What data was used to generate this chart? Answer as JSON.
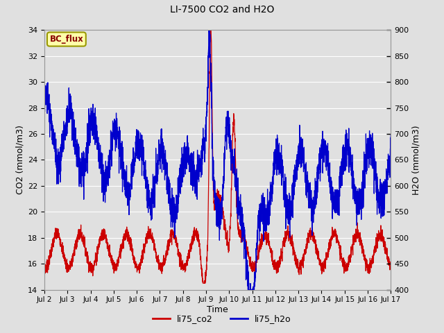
{
  "title": "LI-7500 CO2 and H2O",
  "xlabel": "Time",
  "ylabel_left": "CO2 (mmol/m3)",
  "ylabel_right": "H2O (mmol/m3)",
  "xlim": [
    0,
    15
  ],
  "ylim_left": [
    14,
    34
  ],
  "ylim_right": [
    400,
    900
  ],
  "xtick_labels": [
    "Jul 2",
    "Jul 3",
    "Jul 4",
    "Jul 5",
    "Jul 6",
    "Jul 7",
    "Jul 8",
    "Jul 9",
    "Jul 10",
    "Jul 11",
    "Jul 12",
    "Jul 13",
    "Jul 14",
    "Jul 15",
    "Jul 16",
    "Jul 17"
  ],
  "ytick_left": [
    14,
    16,
    18,
    20,
    22,
    24,
    26,
    28,
    30,
    32,
    34
  ],
  "ytick_right": [
    400,
    450,
    500,
    550,
    600,
    650,
    700,
    750,
    800,
    850,
    900
  ],
  "co2_color": "#cc0000",
  "h2o_color": "#0000cc",
  "fig_bg_color": "#e0e0e0",
  "plot_bg_color": "#e0e0e0",
  "annotation_text": "BC_flux",
  "annotation_bg": "#ffffaa",
  "annotation_border": "#999900",
  "legend_co2": "li75_co2",
  "legend_h2o": "li75_h2o",
  "grid_color": "#ffffff"
}
